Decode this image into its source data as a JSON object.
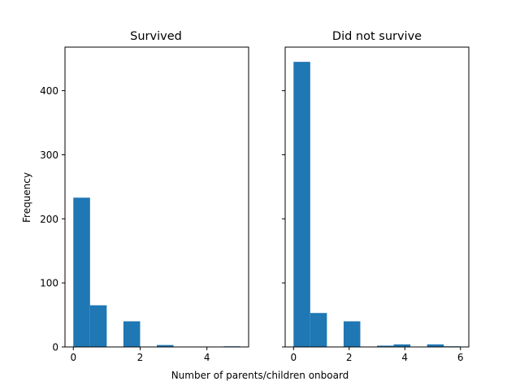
{
  "chart_data": {
    "type": "bar",
    "xlabel": "Number of parents/children onboard",
    "ylabel": "Frequency",
    "sharey": true,
    "ylim": [
      0,
      468
    ],
    "yticks": [
      0,
      100,
      200,
      300,
      400
    ],
    "color": "#1f77b4",
    "panels": [
      {
        "title": "Survived",
        "xlim": [
          -0.25,
          5.25
        ],
        "xticks": [
          0,
          2,
          4
        ],
        "bin_edges": [
          0,
          0.5,
          1,
          1.5,
          2,
          2.5,
          3,
          3.5,
          4,
          4.5,
          5
        ],
        "values": [
          233,
          65,
          0,
          40,
          0,
          3,
          0,
          0,
          0,
          1
        ]
      },
      {
        "title": "Did not survive",
        "xlim": [
          -0.3,
          6.3
        ],
        "xticks": [
          0,
          2,
          4,
          6
        ],
        "bin_edges": [
          0,
          0.6,
          1.2,
          1.8,
          2.4,
          3,
          3.6,
          4.2,
          4.8,
          5.4,
          6
        ],
        "values": [
          445,
          53,
          0,
          40,
          0,
          2,
          4,
          0,
          4,
          1
        ]
      }
    ]
  }
}
